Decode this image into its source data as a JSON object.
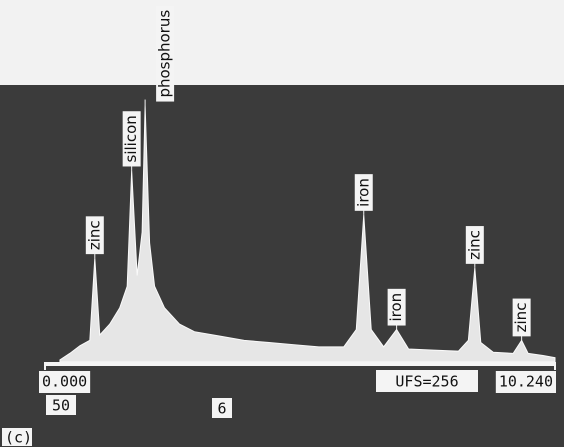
{
  "chart_data": {
    "type": "area",
    "color": "#e6e6e6",
    "x": [
      0.3,
      0.5,
      0.7,
      0.9,
      1.0,
      1.1,
      1.3,
      1.5,
      1.65,
      1.74,
      1.85,
      1.95,
      2.01,
      2.1,
      2.2,
      2.4,
      2.7,
      3.0,
      3.5,
      4.0,
      4.5,
      5.0,
      5.5,
      6.0,
      6.25,
      6.4,
      6.55,
      6.8,
      7.06,
      7.3,
      7.8,
      8.3,
      8.5,
      8.63,
      8.75,
      9.0,
      9.4,
      9.57,
      9.7,
      10.0,
      10.24
    ],
    "values": [
      2,
      8,
      15,
      20,
      96,
      25,
      35,
      50,
      70,
      177,
      80,
      120,
      237,
      110,
      70,
      50,
      35,
      28,
      24,
      20,
      18,
      16,
      14,
      14,
      30,
      136,
      30,
      14,
      30,
      12,
      11,
      10,
      20,
      87,
      18,
      9,
      8,
      20,
      8,
      6,
      4
    ],
    "xlim": [
      0,
      10.24
    ],
    "ylim": [
      0,
      256
    ],
    "xticks": [
      {
        "value": 0,
        "label": "0.000"
      },
      {
        "value": 10.24,
        "label": "10.240"
      }
    ],
    "annotations": [
      {
        "text": "zinc",
        "x": 1.0
      },
      {
        "text": "silicon",
        "x": 1.74
      },
      {
        "text": "phosphorus",
        "x": 2.01
      },
      {
        "text": "iron",
        "x": 6.4
      },
      {
        "text": "iron",
        "x": 7.06
      },
      {
        "text": "zinc",
        "x": 8.63
      },
      {
        "text": "zinc",
        "x": 9.57
      }
    ],
    "scale_label": "UFS=256",
    "readout": [
      "50",
      "6"
    ],
    "panel": "(c)"
  }
}
